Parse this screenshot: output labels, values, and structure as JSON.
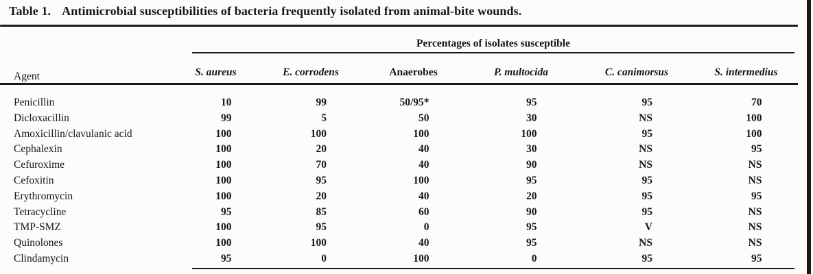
{
  "title": {
    "label": "Table 1.",
    "text": "Antimicrobial susceptibilities of bacteria frequently isolated from animal-bite wounds."
  },
  "chart_data": {
    "type": "table",
    "title": "Table 1. Antimicrobial susceptibilities of bacteria frequently isolated from animal-bite wounds.",
    "group_header": "Percentages of isolates susceptible",
    "row_header": "Agent",
    "columns": [
      "S. aureus",
      "E. corrodens",
      "Anaerobes",
      "P. multocida",
      "C. canimorsus",
      "S. intermedius"
    ],
    "rows": [
      {
        "agent": "Penicillin",
        "values": [
          "10",
          "99",
          "50/95*",
          "95",
          "95",
          "70"
        ]
      },
      {
        "agent": "Dicloxacillin",
        "values": [
          "99",
          "5",
          "50",
          "30",
          "NS",
          "100"
        ]
      },
      {
        "agent": "Amoxicillin/clavulanic acid",
        "values": [
          "100",
          "100",
          "100",
          "100",
          "95",
          "100"
        ]
      },
      {
        "agent": "Cephalexin",
        "values": [
          "100",
          "20",
          "40",
          "30",
          "NS",
          "95"
        ]
      },
      {
        "agent": "Cefuroxime",
        "values": [
          "100",
          "70",
          "40",
          "90",
          "NS",
          "NS"
        ]
      },
      {
        "agent": "Cefoxitin",
        "values": [
          "100",
          "95",
          "100",
          "95",
          "95",
          "NS"
        ]
      },
      {
        "agent": "Erythromycin",
        "values": [
          "100",
          "20",
          "40",
          "20",
          "95",
          "95"
        ]
      },
      {
        "agent": "Tetracycline",
        "values": [
          "95",
          "85",
          "60",
          "90",
          "95",
          "NS"
        ]
      },
      {
        "agent": "TMP-SMZ",
        "values": [
          "100",
          "95",
          "0",
          "95",
          "V",
          "NS"
        ]
      },
      {
        "agent": "Quinolones",
        "values": [
          "100",
          "100",
          "40",
          "95",
          "NS",
          "NS"
        ]
      },
      {
        "agent": "Clindamycin",
        "values": [
          "95",
          "0",
          "100",
          "0",
          "95",
          "95"
        ]
      }
    ]
  }
}
